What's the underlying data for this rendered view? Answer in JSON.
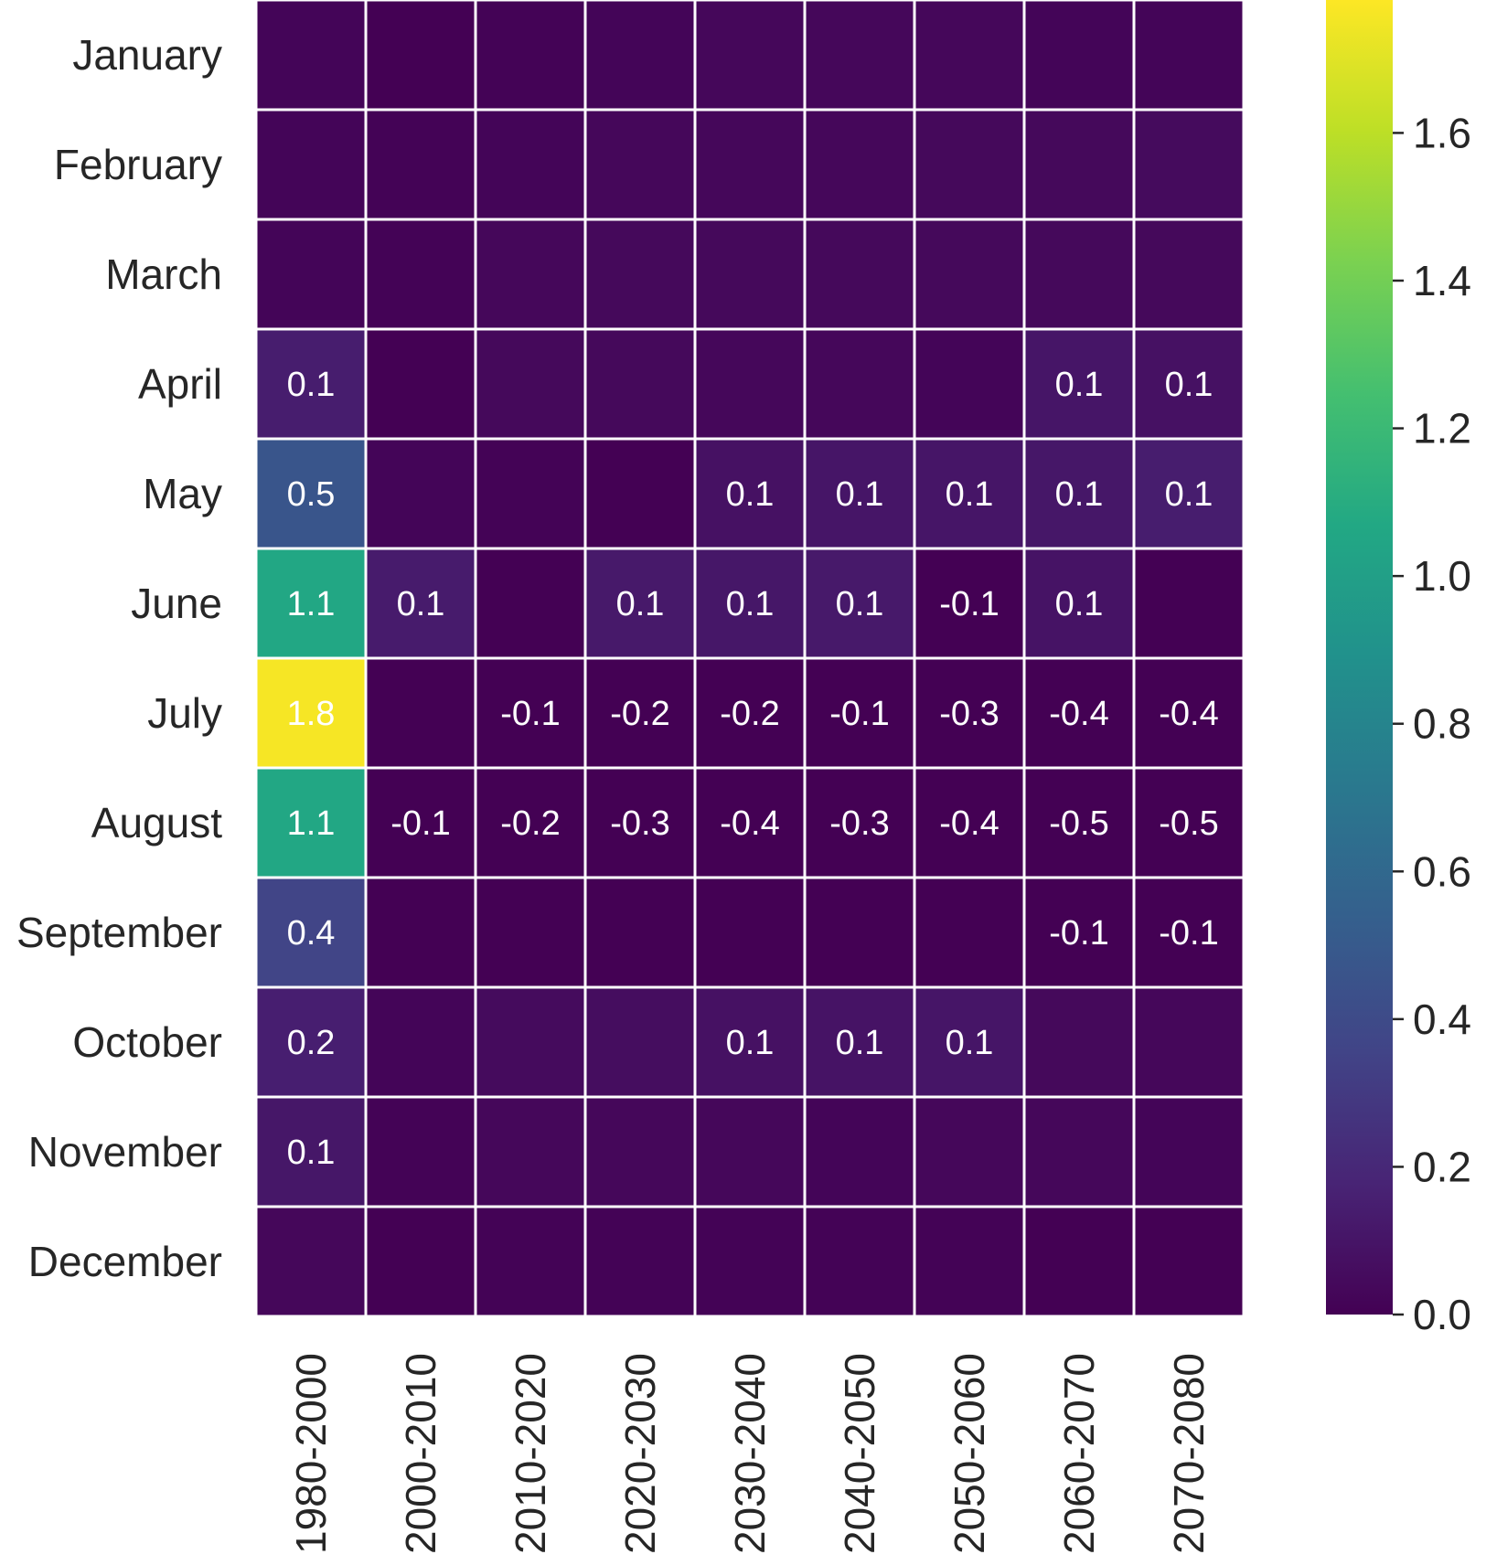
{
  "chart_data": {
    "type": "heatmap",
    "title": "",
    "xlabel": "",
    "ylabel": "",
    "colormap": "viridis",
    "cell_border_color": "#ffffff",
    "x_categories": [
      "1980-2000",
      "2000-2010",
      "2010-2020",
      "2020-2030",
      "2030-2040",
      "2040-2050",
      "2050-2060",
      "2060-2070",
      "2070-2080"
    ],
    "y_categories": [
      "January",
      "February",
      "March",
      "April",
      "May",
      "June",
      "July",
      "August",
      "September",
      "October",
      "November",
      "December"
    ],
    "values": [
      [
        0.02,
        0.0,
        0.01,
        0.02,
        0.03,
        0.03,
        0.03,
        0.02,
        0.02
      ],
      [
        0.02,
        0.01,
        0.02,
        0.03,
        0.03,
        0.03,
        0.04,
        0.04,
        0.05
      ],
      [
        0.02,
        0.01,
        0.03,
        0.04,
        0.04,
        0.04,
        0.04,
        0.04,
        0.04
      ],
      [
        0.14,
        0.0,
        0.04,
        0.04,
        0.03,
        0.03,
        0.02,
        0.1,
        0.08
      ],
      [
        0.47,
        0.02,
        0.01,
        0.0,
        0.08,
        0.1,
        0.1,
        0.11,
        0.14
      ],
      [
        1.06,
        0.13,
        0.0,
        0.12,
        0.11,
        0.12,
        -0.06,
        0.09,
        0.0
      ],
      [
        1.76,
        0.0,
        -0.08,
        -0.15,
        -0.18,
        -0.12,
        -0.25,
        -0.36,
        -0.4
      ],
      [
        1.06,
        -0.06,
        -0.16,
        -0.26,
        -0.36,
        -0.3,
        -0.4,
        -0.45,
        -0.5
      ],
      [
        0.36,
        0.0,
        0.0,
        0.0,
        -0.02,
        -0.02,
        0.0,
        -0.07,
        -0.07
      ],
      [
        0.15,
        0.02,
        0.05,
        0.06,
        0.08,
        0.09,
        0.1,
        0.04,
        0.03
      ],
      [
        0.11,
        0.01,
        0.03,
        0.03,
        0.03,
        0.02,
        0.03,
        0.03,
        0.02
      ],
      [
        0.03,
        0.0,
        0.01,
        0.01,
        0.01,
        0.01,
        0.01,
        0.0,
        0.0
      ]
    ],
    "annotations": [
      [
        "",
        "",
        "",
        "",
        "",
        "",
        "",
        "",
        ""
      ],
      [
        "",
        "",
        "",
        "",
        "",
        "",
        "",
        "",
        ""
      ],
      [
        "",
        "",
        "",
        "",
        "",
        "",
        "",
        "",
        ""
      ],
      [
        "0.1",
        "",
        "",
        "",
        "",
        "",
        "",
        "0.1",
        "0.1"
      ],
      [
        "0.5",
        "",
        "",
        "",
        "0.1",
        "0.1",
        "0.1",
        "0.1",
        "0.1"
      ],
      [
        "1.1",
        "0.1",
        "",
        "0.1",
        "0.1",
        "0.1",
        "-0.1",
        "0.1",
        ""
      ],
      [
        "1.8",
        "",
        "-0.1",
        "-0.2",
        "-0.2",
        "-0.1",
        "-0.3",
        "-0.4",
        "-0.4"
      ],
      [
        "1.1",
        "-0.1",
        "-0.2",
        "-0.3",
        "-0.4",
        "-0.3",
        "-0.4",
        "-0.5",
        "-0.5"
      ],
      [
        "0.4",
        "",
        "",
        "",
        "",
        "",
        "",
        "-0.1",
        "-0.1"
      ],
      [
        "0.2",
        "",
        "",
        "",
        "0.1",
        "0.1",
        "0.1",
        "",
        ""
      ],
      [
        "0.1",
        "",
        "",
        "",
        "",
        "",
        "",
        "",
        ""
      ],
      [
        "",
        "",
        "",
        "",
        "",
        "",
        "",
        "",
        ""
      ]
    ],
    "colorbar": {
      "range": [
        0.0,
        1.78
      ],
      "ticks": [
        0.0,
        0.2,
        0.4,
        0.6,
        0.8,
        1.0,
        1.2,
        1.4,
        1.6
      ],
      "tick_labels": [
        "0.0",
        "0.2",
        "0.4",
        "0.6",
        "0.8",
        "1.0",
        "1.2",
        "1.4",
        "1.6"
      ]
    }
  }
}
